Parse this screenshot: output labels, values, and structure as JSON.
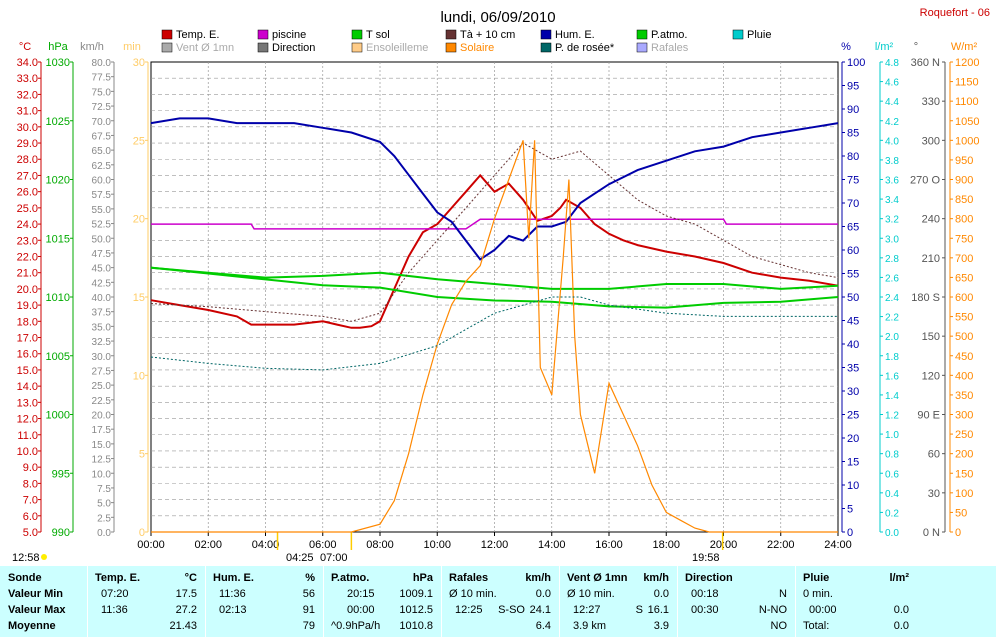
{
  "chart_data": {
    "type": "line",
    "title": "lundi, 06/09/2010",
    "station": "Roquefort - 06",
    "x_ticks": [
      "00:00",
      "02:00",
      "04:00",
      "06:00",
      "08:00",
      "10:00",
      "12:00",
      "14:00",
      "16:00",
      "18:00",
      "20:00",
      "22:00",
      "24:00"
    ],
    "legend": [
      {
        "label": "Temp. E.",
        "color": "#cc0000"
      },
      {
        "label": "piscine",
        "color": "#cc00cc"
      },
      {
        "label": "T sol",
        "color": "#00cc00"
      },
      {
        "label": "Tà + 10 cm",
        "color": "#663333"
      },
      {
        "label": "Hum. E.",
        "color": "#0000aa"
      },
      {
        "label": "P.atmo.",
        "color": "#00cc00"
      },
      {
        "label": "Pluie",
        "color": "#00cccc"
      },
      {
        "label": "Vent Ø 1mn",
        "color": "#aaaaaa"
      },
      {
        "label": "Direction",
        "color": "#777777"
      },
      {
        "label": "Ensoleilleme",
        "color": "#ffcc88"
      },
      {
        "label": "Solaire",
        "color": "#ff8800"
      },
      {
        "label": "P. de rosée*",
        "color": "#006666"
      },
      {
        "label": "Rafales",
        "color": "#aaaaff"
      }
    ],
    "axes": {
      "temp": {
        "unit": "°C",
        "min": 5,
        "max": 34,
        "step": 1,
        "color": "#cc0000"
      },
      "pressure": {
        "unit": "hPa",
        "min": 990,
        "max": 1030,
        "step": 5,
        "color": "#00aa00"
      },
      "wind": {
        "unit": "km/h",
        "min": 0,
        "max": 80,
        "step": 2.5,
        "color": "#888888"
      },
      "min_axis": {
        "unit": "min",
        "min": 0,
        "max": 30,
        "step": 5,
        "color": "#ffcc66"
      },
      "humidity": {
        "unit": "%",
        "min": 0,
        "max": 100,
        "step": 5,
        "color": "#0000aa"
      },
      "rain": {
        "unit": "l/m²",
        "min": 0,
        "max": 4.8,
        "step": 0.2,
        "color": "#00cccc"
      },
      "direction": {
        "unit": "°",
        "min": 0,
        "max": 360,
        "step": 30,
        "color": "#555555"
      },
      "solar": {
        "unit": "W/m²",
        "min": 0,
        "max": 1200,
        "step": 50,
        "color": "#ff8800"
      }
    },
    "series": [
      {
        "name": "Temp. E.",
        "color": "#cc0000",
        "x": [
          0,
          1,
          2,
          3,
          3.5,
          4,
          5,
          6,
          6.5,
          7,
          7.3,
          7.7,
          8,
          8.5,
          9,
          9.5,
          10,
          10.5,
          11,
          11.5,
          12,
          12.5,
          13,
          13.5,
          14,
          14.3,
          14.5,
          15,
          15.5,
          16,
          16.5,
          17,
          18,
          19,
          20,
          21,
          22,
          23,
          24
        ],
        "y": [
          19.3,
          19.0,
          18.7,
          18.3,
          17.8,
          17.8,
          17.8,
          18.0,
          17.8,
          17.6,
          17.6,
          17.7,
          18.0,
          20.0,
          22.0,
          23.5,
          24.0,
          25.0,
          26.0,
          27.0,
          26.0,
          26.5,
          25.5,
          24.2,
          24.5,
          25.0,
          25.5,
          25.0,
          24.0,
          23.4,
          23.0,
          22.7,
          22.3,
          22.0,
          21.6,
          21.0,
          20.7,
          20.5,
          20.2
        ]
      },
      {
        "name": "piscine",
        "color": "#cc00cc",
        "x": [
          0,
          3.5,
          3.6,
          8,
          11,
          11.5,
          16,
          20,
          20.1,
          24
        ],
        "y": [
          24.0,
          24.0,
          23.7,
          23.7,
          23.7,
          24.3,
          24.3,
          24.3,
          24.0,
          24.0
        ]
      },
      {
        "name": "T sol",
        "color": "#00cc00",
        "x": [
          0,
          2,
          4,
          6,
          8,
          10,
          12,
          14,
          16,
          18,
          20,
          22,
          24
        ],
        "y": [
          21.3,
          21.0,
          20.7,
          20.8,
          21.0,
          20.6,
          20.3,
          20.0,
          20.0,
          20.3,
          20.3,
          20.0,
          20.2
        ]
      },
      {
        "name": "Tà + 10 cm",
        "color": "#663333",
        "x": [
          0,
          2,
          4,
          6,
          7,
          8,
          9,
          10,
          11,
          12,
          13,
          14,
          15,
          16,
          17,
          18,
          19,
          20,
          21,
          22,
          23,
          24
        ],
        "y": [
          19.1,
          18.9,
          18.6,
          18.3,
          18.0,
          18.5,
          21.0,
          23.0,
          25.0,
          27.0,
          29.0,
          28.0,
          28.5,
          27.0,
          25.5,
          24.5,
          24.0,
          23.0,
          22.0,
          21.5,
          21.0,
          20.7
        ]
      },
      {
        "name": "Hum. E.",
        "color": "#0000aa",
        "x": [
          0,
          1,
          2,
          3,
          4,
          5,
          6,
          7,
          8,
          8.5,
          9,
          9.5,
          10,
          10.5,
          11,
          11.5,
          12,
          12.5,
          13,
          13.5,
          14,
          14.5,
          15,
          15.5,
          16,
          17,
          18,
          19,
          20,
          21,
          22,
          23,
          24
        ],
        "y": [
          87,
          88,
          88,
          87,
          87,
          87,
          86,
          85,
          83,
          80,
          76,
          72,
          68,
          66,
          62,
          58,
          60,
          63,
          62,
          65,
          65,
          66,
          70,
          72,
          74,
          77,
          79,
          81,
          82,
          84,
          85,
          86,
          87
        ]
      },
      {
        "name": "P.atmo.",
        "color": "#00cc00",
        "x": [
          0,
          2,
          4,
          6,
          8,
          10,
          12,
          14,
          16,
          18,
          20,
          22,
          24
        ],
        "y": [
          1012.5,
          1012.0,
          1011.5,
          1011.0,
          1010.8,
          1010.0,
          1009.7,
          1009.6,
          1009.2,
          1009.1,
          1009.5,
          1009.6,
          1010.0
        ]
      },
      {
        "name": "Solaire",
        "color": "#ff8800",
        "x": [
          0,
          7,
          8,
          8.5,
          9,
          9.5,
          10,
          10.5,
          11,
          11.5,
          12,
          12.5,
          13,
          13.2,
          13.4,
          13.6,
          14,
          14.4,
          14.6,
          14.8,
          15,
          15.5,
          16,
          16.5,
          17,
          17.5,
          18,
          18.5,
          19,
          19.5,
          24
        ],
        "y": [
          0,
          0,
          20,
          80,
          200,
          350,
          480,
          580,
          640,
          680,
          800,
          900,
          1000,
          750,
          1000,
          420,
          350,
          700,
          900,
          500,
          300,
          150,
          380,
          300,
          220,
          120,
          50,
          30,
          10,
          0,
          0
        ]
      },
      {
        "name": "P. de rosée*",
        "color": "#006666",
        "x": [
          0,
          2,
          4,
          6,
          8,
          10,
          12,
          13,
          14,
          15,
          16,
          18,
          20,
          22,
          24
        ],
        "y": [
          15.8,
          15.4,
          15.1,
          15.0,
          15.4,
          16.5,
          18.5,
          19.0,
          19.5,
          19.5,
          19.0,
          18.5,
          18.3,
          18.3,
          18.3
        ]
      }
    ]
  },
  "sunrise": "04:25",
  "daylight": "07:00",
  "sunset": "19:58",
  "left_marker": "12:58",
  "table": {
    "headers": {
      "sonde": "Sonde",
      "temp": "Temp. E.",
      "temp_unit": "°C",
      "hum": "Hum. E.",
      "hum_unit": "%",
      "patmo": "P.atmo.",
      "patmo_unit": "hPa",
      "rafales": "Rafales",
      "rafales_unit": "km/h",
      "vent": "Vent Ø 1mn",
      "vent_unit": "km/h",
      "direction": "Direction",
      "pluie": "Pluie",
      "pluie_unit": "l/m²"
    },
    "rows": [
      {
        "label": "Valeur Min",
        "temp_time": "07:20",
        "temp_val": "17.5",
        "hum_time": "11:36",
        "hum_val": "56",
        "patmo_time": "20:15",
        "patmo_val": "1009.1",
        "raf_a": "Ø 10 min.",
        "raf_b": "",
        "raf_val": "0.0",
        "vent_a": "Ø 10 min.",
        "vent_val": "0.0",
        "dir_time": "00:18",
        "dir_val": "N",
        "pluie_a": "0 min.",
        "pluie_val": ""
      },
      {
        "label": "Valeur Max",
        "temp_time": "11:36",
        "temp_val": "27.2",
        "hum_time": "02:13",
        "hum_val": "91",
        "patmo_time": "00:00",
        "patmo_val": "1012.5",
        "raf_a": "12:25",
        "raf_b": "S-SO",
        "raf_val": "24.1",
        "vent_a": "12:27",
        "vent_b": "S",
        "vent_val": "16.1",
        "dir_time": "00:30",
        "dir_val": "N-NO",
        "pluie_a": "00:00",
        "pluie_val": "0.0"
      },
      {
        "label": "Moyenne",
        "temp_time": "",
        "temp_val": "21.43",
        "hum_time": "",
        "hum_val": "79",
        "patmo_time": "^0.9hPa/h",
        "patmo_val": "1010.8",
        "raf_a": "",
        "raf_b": "",
        "raf_val": "6.4",
        "vent_a": "3.9 km",
        "vent_val": "3.9",
        "dir_time": "",
        "dir_val": "NO",
        "pluie_a": "Total:",
        "pluie_val": "0.0"
      }
    ]
  }
}
